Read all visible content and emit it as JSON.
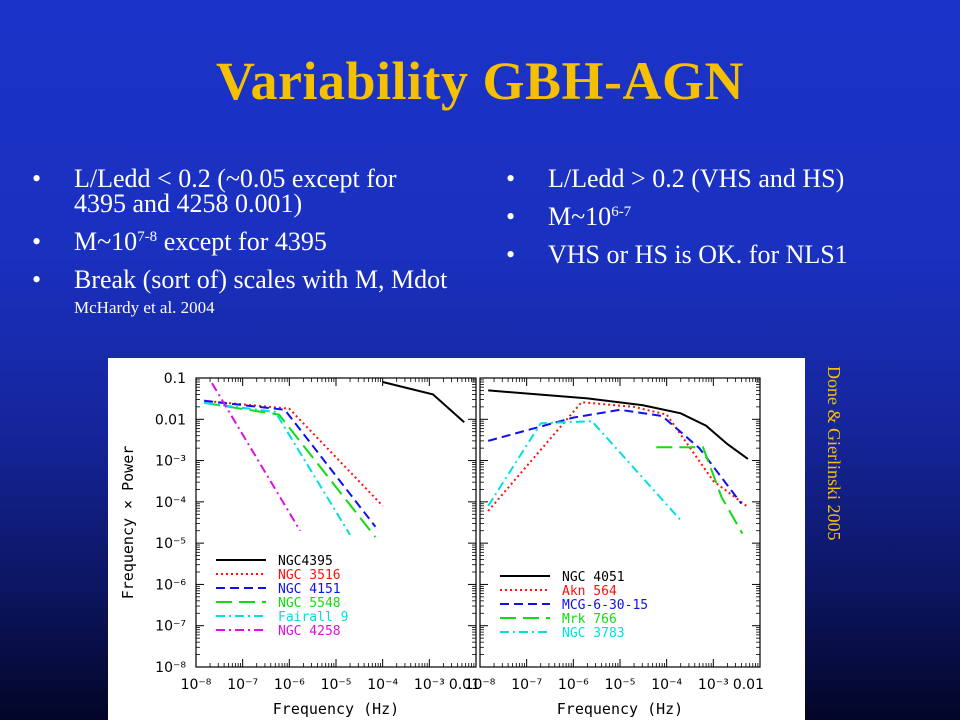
{
  "slide": {
    "title": "Variability GBH-AGN",
    "bullet_char": "•",
    "left_bullets": [
      {
        "text": "L/Ledd < 0.2 (~0.05 except for 4395 and 4258 0.001)"
      },
      {
        "pre": "M~10",
        "sup": "7-8",
        "post": " except for 4395"
      },
      {
        "text": "Break (sort of) scales with M, Mdot ",
        "small": "McHardy et al. 2004"
      }
    ],
    "right_bullets": [
      {
        "text": "L/Ledd > 0.2 (VHS and HS)"
      },
      {
        "pre": "M~10",
        "sup": "6-7",
        "post": ""
      },
      {
        "text": "VHS or HS is OK. for NLS1"
      }
    ],
    "credit": "Done & Gierlinski 2005"
  },
  "chart_data": [
    {
      "type": "line",
      "panel": "left",
      "xlabel": "Frequency (Hz)",
      "ylabel": "Frequency × Power",
      "x_scale": "log",
      "y_scale": "log",
      "xlim": [
        1e-08,
        0.01
      ],
      "ylim": [
        1e-08,
        0.1
      ],
      "x_ticks": [
        "10⁻⁸",
        "10⁻⁷",
        "10⁻⁶",
        "10⁻⁵",
        "10⁻⁴",
        "10⁻³",
        "0.01"
      ],
      "y_ticks": [
        "0.1",
        "0.01",
        "10⁻³",
        "10⁻⁴",
        "10⁻⁵",
        "10⁻⁶",
        "10⁻⁷",
        "10⁻⁸"
      ],
      "legend_position": "bottom-left",
      "series": [
        {
          "name": "NGC4395",
          "color": "#000000",
          "dash": "solid",
          "points": [
            [
              0.0001,
              0.08
            ],
            [
              0.0012,
              0.04
            ],
            [
              0.0056,
              0.0085
            ]
          ]
        },
        {
          "name": "NGC 3516",
          "color": "#ff1010",
          "dash": "dotted",
          "points": [
            [
              1.5e-08,
              0.028
            ],
            [
              1e-06,
              0.018
            ],
            [
              0.0001,
              8e-05
            ]
          ]
        },
        {
          "name": "NGC 4151",
          "color": "#1010ee",
          "dash": "dashed",
          "points": [
            [
              1.5e-08,
              0.028
            ],
            [
              8e-07,
              0.017
            ],
            [
              7e-05,
              2.5e-05
            ]
          ]
        },
        {
          "name": "NGC 5548",
          "color": "#10dd10",
          "dash": "longdash",
          "points": [
            [
              1.5e-08,
              0.025
            ],
            [
              6e-07,
              0.013
            ],
            [
              7e-05,
              1.4e-05
            ]
          ]
        },
        {
          "name": "Fairall 9",
          "color": "#00e0e0",
          "dash": "dashdot",
          "points": [
            [
              1.5e-08,
              0.025
            ],
            [
              5e-07,
              0.015
            ],
            [
              2e-05,
              1.6e-05
            ]
          ]
        },
        {
          "name": "NGC 4258",
          "color": "#e010e0",
          "dash": "dashdot",
          "points": [
            [
              2.2e-08,
              0.075
            ],
            [
              1.7e-06,
              2e-05
            ]
          ]
        }
      ]
    },
    {
      "type": "line",
      "panel": "right",
      "xlabel": "Frequency (Hz)",
      "x_scale": "log",
      "y_scale": "log",
      "xlim": [
        1e-08,
        0.01
      ],
      "ylim": [
        1e-08,
        0.1
      ],
      "x_ticks": [
        "10⁻⁸",
        "10⁻⁷",
        "10⁻⁶",
        "10⁻⁵",
        "10⁻⁴",
        "10⁻³",
        "0.01"
      ],
      "legend_position": "bottom-left",
      "series": [
        {
          "name": "NGC 4051",
          "color": "#000000",
          "dash": "solid",
          "points": [
            [
              1.5e-08,
              0.05
            ],
            [
              2e-06,
              0.032
            ],
            [
              3e-05,
              0.022
            ],
            [
              0.0002,
              0.014
            ],
            [
              0.0007,
              0.007
            ],
            [
              0.002,
              0.0025
            ],
            [
              0.0055,
              0.0011
            ]
          ]
        },
        {
          "name": "Akn 564",
          "color": "#ff1010",
          "dash": "dotted",
          "points": [
            [
              1.5e-08,
              6e-05
            ],
            [
              1.5e-06,
              0.026
            ],
            [
              2e-05,
              0.02
            ],
            [
              0.0001,
              0.013
            ],
            [
              0.001,
              0.00032
            ],
            [
              0.0055,
              7.5e-05
            ]
          ]
        },
        {
          "name": "MCG-6-30-15",
          "color": "#1010ee",
          "dash": "dashed",
          "points": [
            [
              1.5e-08,
              0.003
            ],
            [
              1e-06,
              0.011
            ],
            [
              1e-05,
              0.017
            ],
            [
              8e-05,
              0.012
            ],
            [
              0.0005,
              0.002
            ],
            [
              0.004,
              9e-05
            ]
          ]
        },
        {
          "name": "Mrk 766",
          "color": "#10dd10",
          "dash": "longdash",
          "points": [
            [
              6e-05,
              0.0021
            ],
            [
              0.0006,
              0.0021
            ],
            [
              0.0015,
              0.00013
            ],
            [
              0.0042,
              1.7e-05
            ]
          ]
        },
        {
          "name": "NGC 3783",
          "color": "#00e0e0",
          "dash": "dashdot",
          "points": [
            [
              1.5e-08,
              8e-05
            ],
            [
              2e-07,
              0.008
            ],
            [
              2.5e-06,
              0.009
            ],
            [
              0.0002,
              3.6e-05
            ]
          ]
        }
      ]
    }
  ]
}
